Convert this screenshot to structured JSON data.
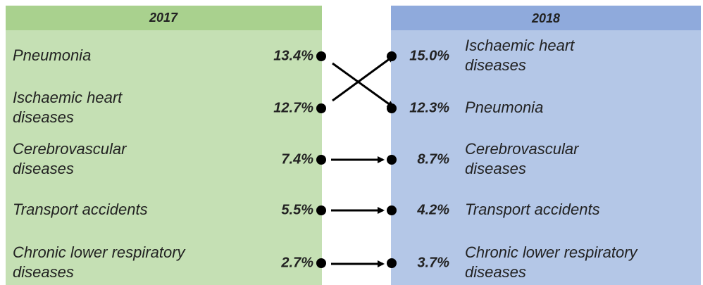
{
  "left": {
    "title": "2017",
    "rows": [
      {
        "label": [
          "Pneumonia"
        ],
        "value": "13.4%"
      },
      {
        "label": [
          "Ischaemic heart",
          "diseases"
        ],
        "value": "12.7%"
      },
      {
        "label": [
          "Cerebrovascular",
          "diseases"
        ],
        "value": "7.4%"
      },
      {
        "label": [
          "Transport accidents"
        ],
        "value": "5.5%"
      },
      {
        "label": [
          "Chronic lower respiratory",
          "diseases"
        ],
        "value": "2.7%"
      }
    ]
  },
  "right": {
    "title": "2018",
    "rows": [
      {
        "label": [
          "Ischaemic heart",
          "diseases"
        ],
        "value": "15.0%"
      },
      {
        "label": [
          "Pneumonia"
        ],
        "value": "12.3%"
      },
      {
        "label": [
          "Cerebrovascular",
          "diseases"
        ],
        "value": "8.7%"
      },
      {
        "label": [
          "Transport accidents"
        ],
        "value": "4.2%"
      },
      {
        "label": [
          "Chronic lower respiratory",
          "diseases"
        ],
        "value": "3.7%"
      }
    ]
  }
}
